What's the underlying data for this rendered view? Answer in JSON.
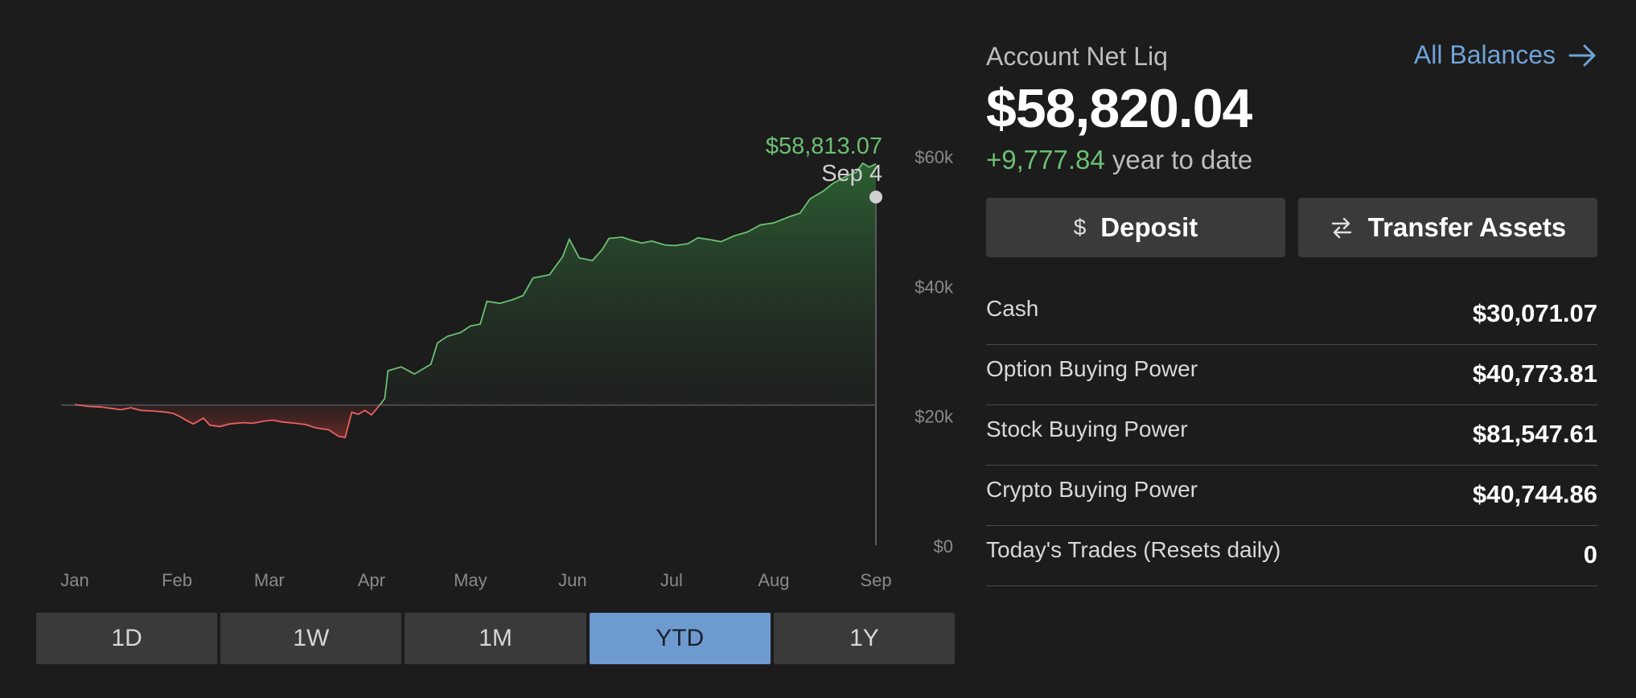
{
  "chart_data": {
    "type": "area",
    "x_unit": "day_of_year",
    "x_ticks": [
      {
        "label": "Jan",
        "x": 1
      },
      {
        "label": "Feb",
        "x": 32
      },
      {
        "label": "Mar",
        "x": 60
      },
      {
        "label": "Apr",
        "x": 91
      },
      {
        "label": "May",
        "x": 121
      },
      {
        "label": "Jun",
        "x": 152
      },
      {
        "label": "Jul",
        "x": 182
      },
      {
        "label": "Aug",
        "x": 213
      },
      {
        "label": "Sep",
        "x": 244
      }
    ],
    "y_ticks": [
      {
        "label": "$60k",
        "value": 60000
      },
      {
        "label": "$40k",
        "value": 40000
      },
      {
        "label": "$20k",
        "value": 20000
      },
      {
        "label": "$0",
        "value": 0
      }
    ],
    "ylim": [
      0,
      62000
    ],
    "xlim": [
      1,
      244
    ],
    "baseline": 21600,
    "series": [
      {
        "points": [
          [
            1,
            21700
          ],
          [
            5,
            21400
          ],
          [
            9,
            21300
          ],
          [
            12,
            21100
          ],
          [
            15,
            20900
          ],
          [
            18,
            21200
          ],
          [
            21,
            20800
          ],
          [
            25,
            20700
          ],
          [
            29,
            20500
          ],
          [
            31,
            20300
          ],
          [
            33,
            19800
          ],
          [
            35,
            19200
          ],
          [
            37,
            18700
          ],
          [
            40,
            19600
          ],
          [
            42,
            18500
          ],
          [
            45,
            18300
          ],
          [
            48,
            18700
          ],
          [
            52,
            18900
          ],
          [
            55,
            18800
          ],
          [
            58,
            19100
          ],
          [
            61,
            19300
          ],
          [
            64,
            19000
          ],
          [
            68,
            18800
          ],
          [
            71,
            18600
          ],
          [
            74,
            18100
          ],
          [
            78,
            17800
          ],
          [
            81,
            16800
          ],
          [
            83,
            16600
          ],
          [
            85,
            20500
          ],
          [
            87,
            20200
          ],
          [
            89,
            20800
          ],
          [
            91,
            20100
          ],
          [
            93,
            21300
          ],
          [
            95,
            22600
          ],
          [
            96,
            26900
          ],
          [
            100,
            27500
          ],
          [
            104,
            26400
          ],
          [
            109,
            27900
          ],
          [
            111,
            31200
          ],
          [
            114,
            32200
          ],
          [
            118,
            32800
          ],
          [
            121,
            33800
          ],
          [
            124,
            34100
          ],
          [
            126,
            37600
          ],
          [
            130,
            37300
          ],
          [
            134,
            37900
          ],
          [
            137,
            38500
          ],
          [
            140,
            41200
          ],
          [
            145,
            41700
          ],
          [
            149,
            44500
          ],
          [
            151,
            47200
          ],
          [
            154,
            44300
          ],
          [
            158,
            43900
          ],
          [
            161,
            45600
          ],
          [
            163,
            47300
          ],
          [
            167,
            47500
          ],
          [
            170,
            47000
          ],
          [
            173,
            46600
          ],
          [
            176,
            46900
          ],
          [
            180,
            46300
          ],
          [
            183,
            46200
          ],
          [
            187,
            46500
          ],
          [
            190,
            47400
          ],
          [
            194,
            47100
          ],
          [
            197,
            46800
          ],
          [
            201,
            47700
          ],
          [
            205,
            48300
          ],
          [
            209,
            49400
          ],
          [
            213,
            49700
          ],
          [
            218,
            50700
          ],
          [
            221,
            51200
          ],
          [
            224,
            53400
          ],
          [
            228,
            54600
          ],
          [
            231,
            55800
          ],
          [
            235,
            56900
          ],
          [
            238,
            57500
          ],
          [
            240,
            58900
          ],
          [
            242,
            58300
          ],
          [
            244,
            58813
          ]
        ]
      }
    ],
    "annotation": {
      "value_label": "$58,813.07",
      "date_label": "Sep 4"
    },
    "colors": {
      "gain": "#6cbf73",
      "loss": "#e8625e",
      "grid": "#4a4a4a",
      "axis_text": "#8a8a8a"
    }
  },
  "range_selector": {
    "options": [
      "1D",
      "1W",
      "1M",
      "YTD",
      "1Y"
    ],
    "selected": "YTD"
  },
  "account": {
    "label": "Account Net Liq",
    "all_balances_label": "All Balances",
    "net_liq": "$58,820.04",
    "ytd_change": "+9,777.84",
    "ytd_suffix": "year to date"
  },
  "actions": {
    "deposit_label": "Deposit",
    "deposit_icon": "$",
    "transfer_label": "Transfer Assets"
  },
  "balances": [
    {
      "label": "Cash",
      "value": "$30,071.07"
    },
    {
      "label": "Option Buying Power",
      "value": "$40,773.81"
    },
    {
      "label": "Stock Buying Power",
      "value": "$81,547.61"
    },
    {
      "label": "Crypto Buying Power",
      "value": "$40,744.86"
    },
    {
      "label": "Today's Trades (Resets daily)",
      "value": "0"
    }
  ]
}
